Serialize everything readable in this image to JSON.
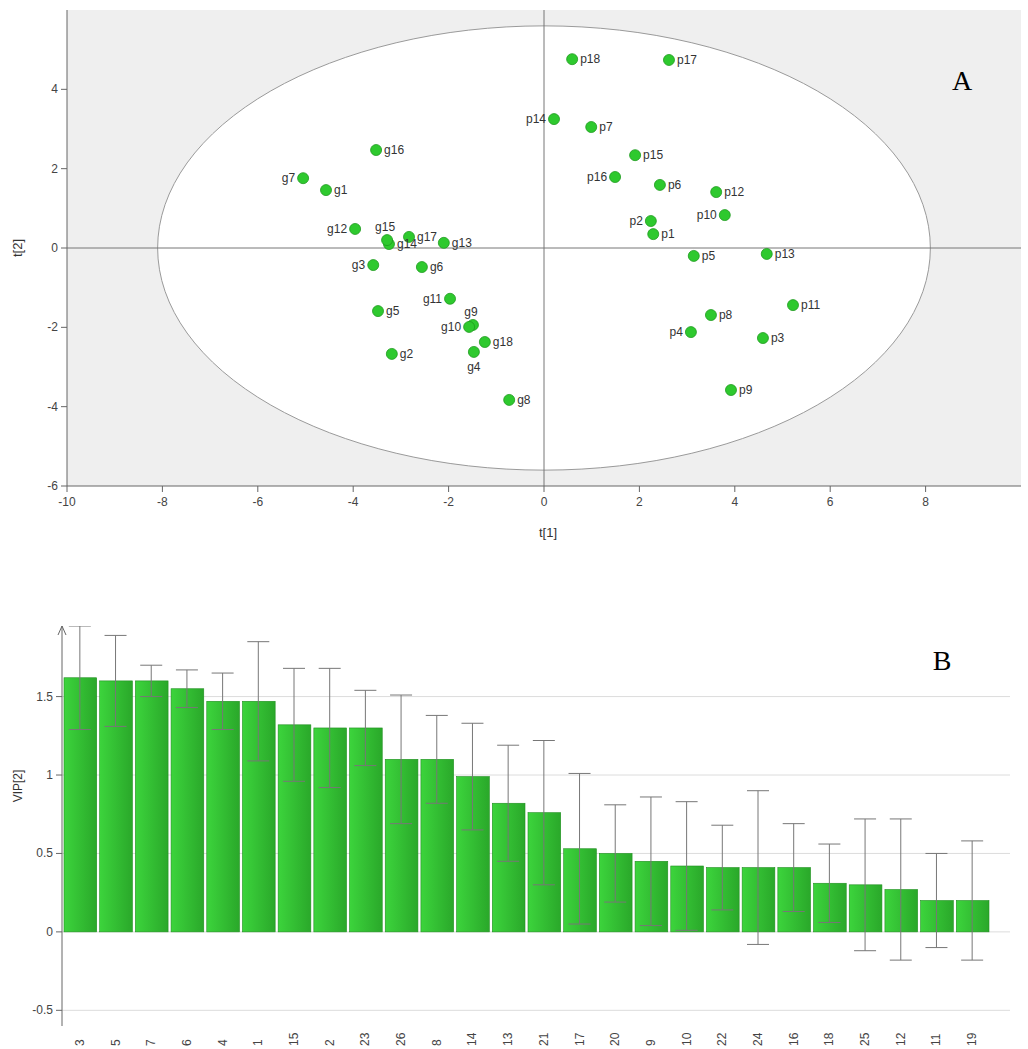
{
  "chart_data": [
    {
      "type": "scatter",
      "panel_label": "A",
      "x_label": "t[1]",
      "y_label": "t[2]",
      "point_labels": [
        "g1",
        "g2",
        "g3",
        "g4",
        "g5",
        "g6",
        "g7",
        "g8",
        "g9",
        "g10",
        "g11",
        "g12",
        "g13",
        "g14",
        "g15",
        "g16",
        "g17",
        "g18",
        "p1",
        "p2",
        "p3",
        "p4",
        "p5",
        "p6",
        "p7",
        "p8",
        "p9",
        "p10",
        "p11",
        "p12",
        "p13",
        "p14",
        "p15",
        "p16",
        "p17",
        "p18"
      ],
      "x": [
        -4.57,
        -3.19,
        -3.58,
        -1.47,
        -3.48,
        -2.56,
        -5.05,
        -0.73,
        -1.49,
        -1.57,
        -1.97,
        -3.96,
        -2.1,
        -3.25,
        -3.29,
        -3.52,
        -2.83,
        -1.24,
        2.29,
        2.24,
        4.59,
        3.08,
        3.14,
        2.43,
        0.99,
        3.5,
        3.92,
        3.79,
        5.22,
        3.61,
        4.67,
        0.21,
        1.91,
        1.49,
        2.62,
        0.59
      ],
      "values": [
        1.46,
        -2.67,
        -0.43,
        -2.62,
        -1.59,
        -0.48,
        1.76,
        -3.83,
        -1.94,
        -1.99,
        -1.28,
        0.48,
        0.13,
        0.1,
        0.2,
        2.47,
        0.28,
        -2.37,
        0.35,
        0.68,
        -2.27,
        -2.12,
        -0.2,
        1.59,
        3.05,
        -1.69,
        -3.58,
        0.83,
        -1.44,
        1.41,
        -0.15,
        3.25,
        2.34,
        1.79,
        4.74,
        4.76
      ],
      "color": "#2ec92e",
      "marker": "circle",
      "ellipse": {
        "rx": 8.1,
        "ry": 5.6
      },
      "xlim": [
        -10,
        10
      ],
      "xticks": [
        -10,
        -8,
        -6,
        -4,
        -2,
        0,
        2,
        4,
        6,
        8
      ],
      "ylim": [
        -6,
        6
      ],
      "yticks": [
        -6,
        -4,
        -2,
        0,
        2,
        4
      ],
      "grid": false
    },
    {
      "type": "bar",
      "panel_label": "B",
      "y_label": "VIP[2]",
      "categories": [
        "3",
        "5",
        "7",
        "6",
        "4",
        "1",
        "15",
        "2",
        "23",
        "26",
        "8",
        "14",
        "13",
        "21",
        "17",
        "20",
        "9",
        "10",
        "22",
        "24",
        "16",
        "18",
        "25",
        "12",
        "11",
        "19"
      ],
      "values": [
        1.62,
        1.6,
        1.6,
        1.55,
        1.47,
        1.47,
        1.32,
        1.3,
        1.3,
        1.1,
        1.1,
        0.99,
        0.82,
        0.76,
        0.53,
        0.5,
        0.45,
        0.42,
        0.41,
        0.41,
        0.41,
        0.31,
        0.3,
        0.27,
        0.2,
        0.2
      ],
      "errors": [
        0.33,
        0.29,
        0.1,
        0.12,
        0.18,
        0.38,
        0.36,
        0.38,
        0.24,
        0.41,
        0.28,
        0.34,
        0.37,
        0.46,
        0.48,
        0.31,
        0.41,
        0.41,
        0.27,
        0.49,
        0.28,
        0.25,
        0.42,
        0.45,
        0.3,
        0.38
      ],
      "color": "#3cd43c",
      "ylim": [
        -0.6,
        1.95
      ],
      "yticks": [
        -0.5,
        0,
        0.5,
        1,
        1.5
      ],
      "grid": true
    }
  ]
}
